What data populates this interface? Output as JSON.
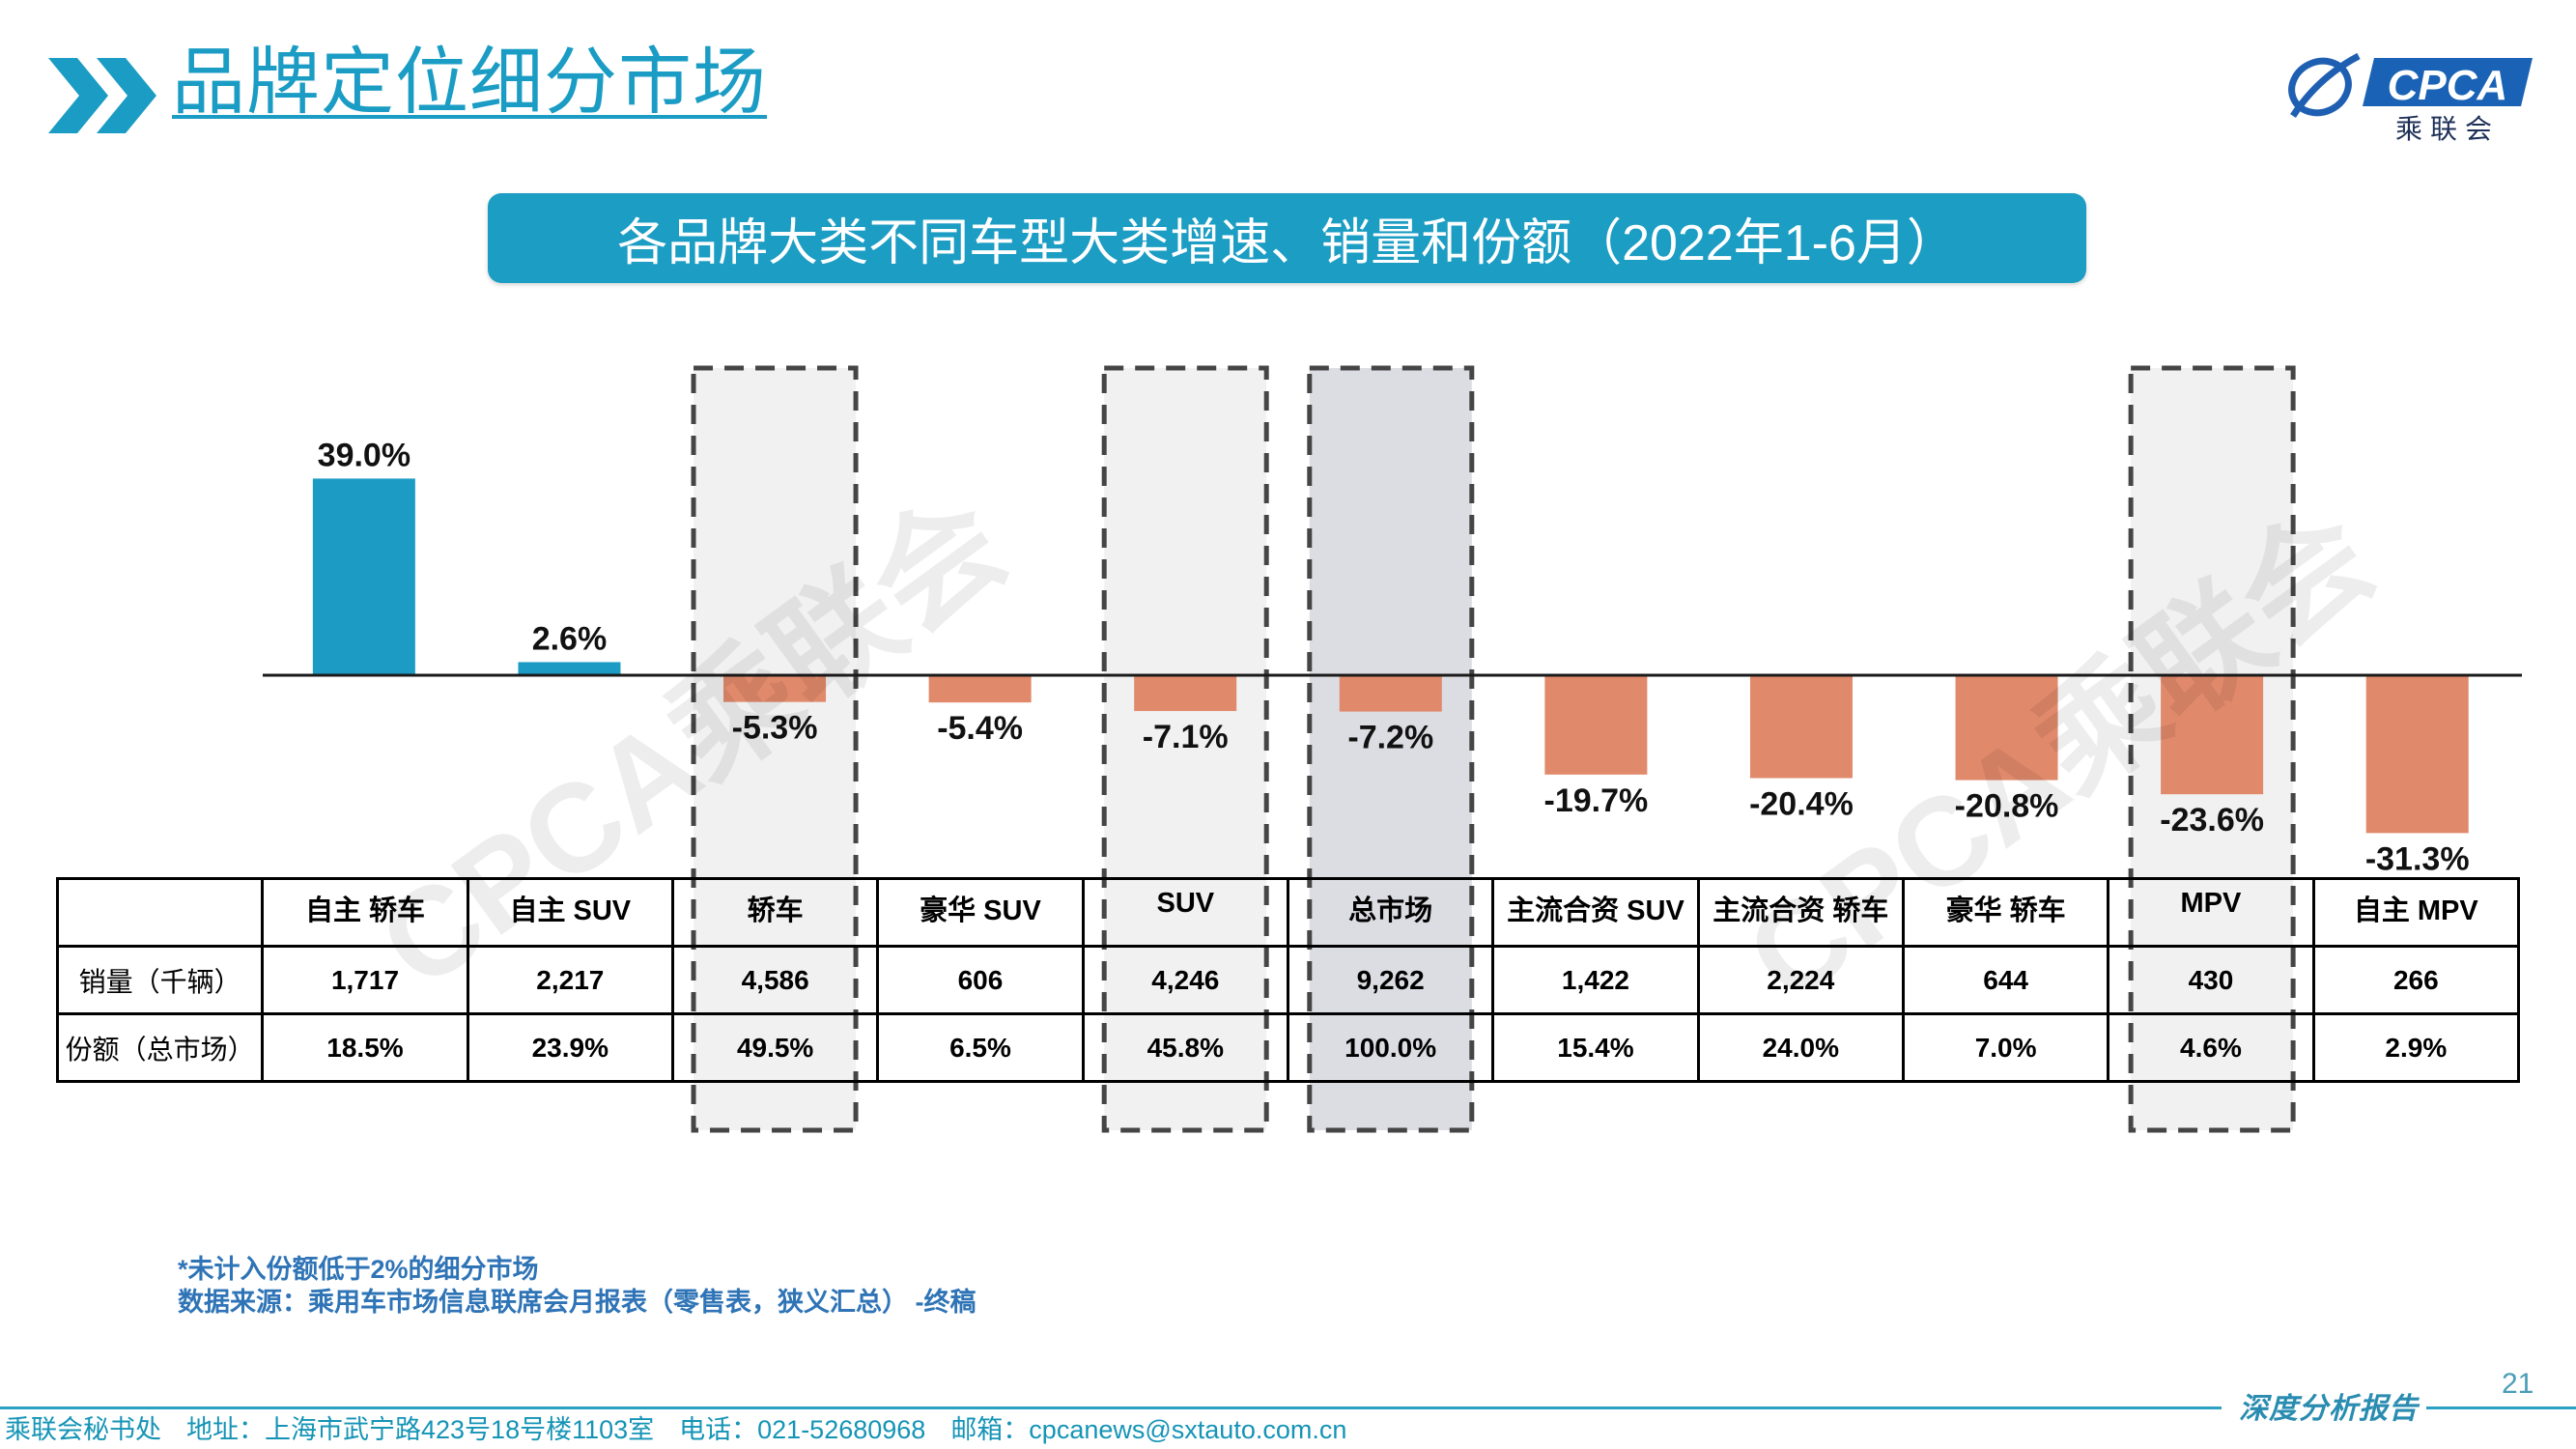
{
  "header": {
    "title": "品牌定位细分市场"
  },
  "logo": {
    "text": "CPCA",
    "subtext": "乘联会"
  },
  "chart_data": {
    "type": "bar",
    "title": "各品牌大类不同车型大类增速、销量和份额（2022年1-6月）",
    "categories": [
      "自主 轿车",
      "自主 SUV",
      "轿车",
      "豪华 SUV",
      "SUV",
      "总市场",
      "主流合资 SUV",
      "主流合资 轿车",
      "豪华 轿车",
      "MPV",
      "自主 MPV"
    ],
    "values": [
      39.0,
      2.6,
      -5.3,
      -5.4,
      -7.1,
      -7.2,
      -19.7,
      -20.4,
      -20.8,
      -23.6,
      -31.3
    ],
    "value_labels": [
      "39.0%",
      "2.6%",
      "-5.3%",
      "-5.4%",
      "-7.1%",
      "-7.2%",
      "-19.7%",
      "-20.4%",
      "-20.8%",
      "-23.6%",
      "-31.3%"
    ],
    "highlighted_indices": [
      2,
      4,
      5,
      9
    ],
    "emphasized_index": 5,
    "colors": {
      "positive": "#1c9cc4",
      "negative": "#e0896b",
      "highlight_fill": "#f1f1f1",
      "emphasis_fill": "#dcdce3",
      "highlight_border": "#454545",
      "baseline": "#1a1a1a"
    },
    "table": {
      "row_labels": [
        "销量（千辆）",
        "份额（总市场）"
      ],
      "sales": [
        "1,717",
        "2,217",
        "4,586",
        "606",
        "4,246",
        "9,262",
        "1,422",
        "2,224",
        "644",
        "430",
        "266"
      ],
      "share": [
        "18.5%",
        "23.9%",
        "49.5%",
        "6.5%",
        "45.8%",
        "100.0%",
        "15.4%",
        "24.0%",
        "7.0%",
        "4.6%",
        "2.9%"
      ]
    }
  },
  "notes": [
    "*未计入份额低于2%的细分市场",
    "数据来源：乘用车市场信息联席会月报表（零售表，狭义汇总） -终稿"
  ],
  "page_number": "21",
  "watermark": "CPCA乘联会",
  "footer": {
    "tagline": "深度分析报告",
    "org": "乘联会秘书处",
    "address": "地址：上海市武宁路423号18号楼1103室",
    "phone": "电话：021-52680968",
    "email": "邮箱：cpcanews@sxtauto.com.cn"
  },
  "colors": {
    "accent": "#1a9cc4",
    "banner": "#1c9dc3",
    "notes": "#2f74b6",
    "footer": "#1594b6"
  }
}
